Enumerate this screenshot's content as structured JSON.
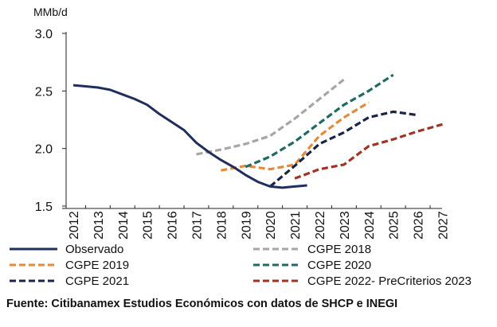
{
  "chart_data": {
    "type": "line",
    "ylabel": "MMb/d",
    "ylim": [
      1.5,
      3.0
    ],
    "yticks": [
      "1.5",
      "2.0",
      "2.5",
      "3.0"
    ],
    "categories": [
      "2012",
      "2013",
      "2014",
      "2015",
      "2016",
      "2017",
      "2018",
      "2019",
      "2020",
      "2021",
      "2022",
      "2023",
      "2024",
      "2025",
      "2026",
      "2027"
    ],
    "series": [
      {
        "name": "Observado",
        "color": "#1f2f5c",
        "dash": "solid",
        "points": [
          [
            2012,
            2.55
          ],
          [
            2012.5,
            2.54
          ],
          [
            2013,
            2.53
          ],
          [
            2013.5,
            2.51
          ],
          [
            2014,
            2.47
          ],
          [
            2014.5,
            2.43
          ],
          [
            2015,
            2.38
          ],
          [
            2015.5,
            2.3
          ],
          [
            2016,
            2.23
          ],
          [
            2016.5,
            2.16
          ],
          [
            2017,
            2.05
          ],
          [
            2017.5,
            1.97
          ],
          [
            2018,
            1.9
          ],
          [
            2018.5,
            1.84
          ],
          [
            2019,
            1.77
          ],
          [
            2019.5,
            1.71
          ],
          [
            2020,
            1.67
          ],
          [
            2020.5,
            1.66
          ],
          [
            2021,
            1.67
          ],
          [
            2021.5,
            1.68
          ]
        ]
      },
      {
        "name": "CGPE 2018",
        "color": "#a6a6a6",
        "dash": "dash",
        "points": [
          [
            2017,
            1.95
          ],
          [
            2018,
            1.99
          ],
          [
            2019,
            2.04
          ],
          [
            2020,
            2.11
          ],
          [
            2021,
            2.26
          ],
          [
            2022,
            2.43
          ],
          [
            2023,
            2.6
          ]
        ]
      },
      {
        "name": "CGPE 2019",
        "color": "#e58a3a",
        "dash": "dash",
        "points": [
          [
            2018,
            1.81
          ],
          [
            2019,
            1.85
          ],
          [
            2020,
            1.82
          ],
          [
            2021,
            1.86
          ],
          [
            2022,
            2.11
          ],
          [
            2023,
            2.27
          ],
          [
            2024,
            2.4
          ]
        ]
      },
      {
        "name": "CGPE 2020",
        "color": "#1f6b63",
        "dash": "dash",
        "points": [
          [
            2019,
            1.84
          ],
          [
            2020,
            1.93
          ],
          [
            2021,
            2.06
          ],
          [
            2022,
            2.22
          ],
          [
            2023,
            2.38
          ],
          [
            2024,
            2.5
          ],
          [
            2025,
            2.64
          ]
        ]
      },
      {
        "name": "CGPE 2021",
        "color": "#1a2447",
        "dash": "dash",
        "points": [
          [
            2020,
            1.67
          ],
          [
            2021,
            1.85
          ],
          [
            2022,
            2.04
          ],
          [
            2023,
            2.14
          ],
          [
            2024,
            2.27
          ],
          [
            2025,
            2.32
          ],
          [
            2026,
            2.29
          ]
        ]
      },
      {
        "name": "CGPE 2022- PreCriterios 2023",
        "color": "#9e3426",
        "dash": "dash",
        "points": [
          [
            2021,
            1.74
          ],
          [
            2022,
            1.82
          ],
          [
            2023,
            1.86
          ],
          [
            2024,
            2.02
          ],
          [
            2025,
            2.08
          ],
          [
            2026,
            2.15
          ],
          [
            2027,
            2.21
          ]
        ]
      }
    ]
  },
  "source": "Fuente: Citibanamex Estudios Económicos con datos de SHCP e INEGI"
}
